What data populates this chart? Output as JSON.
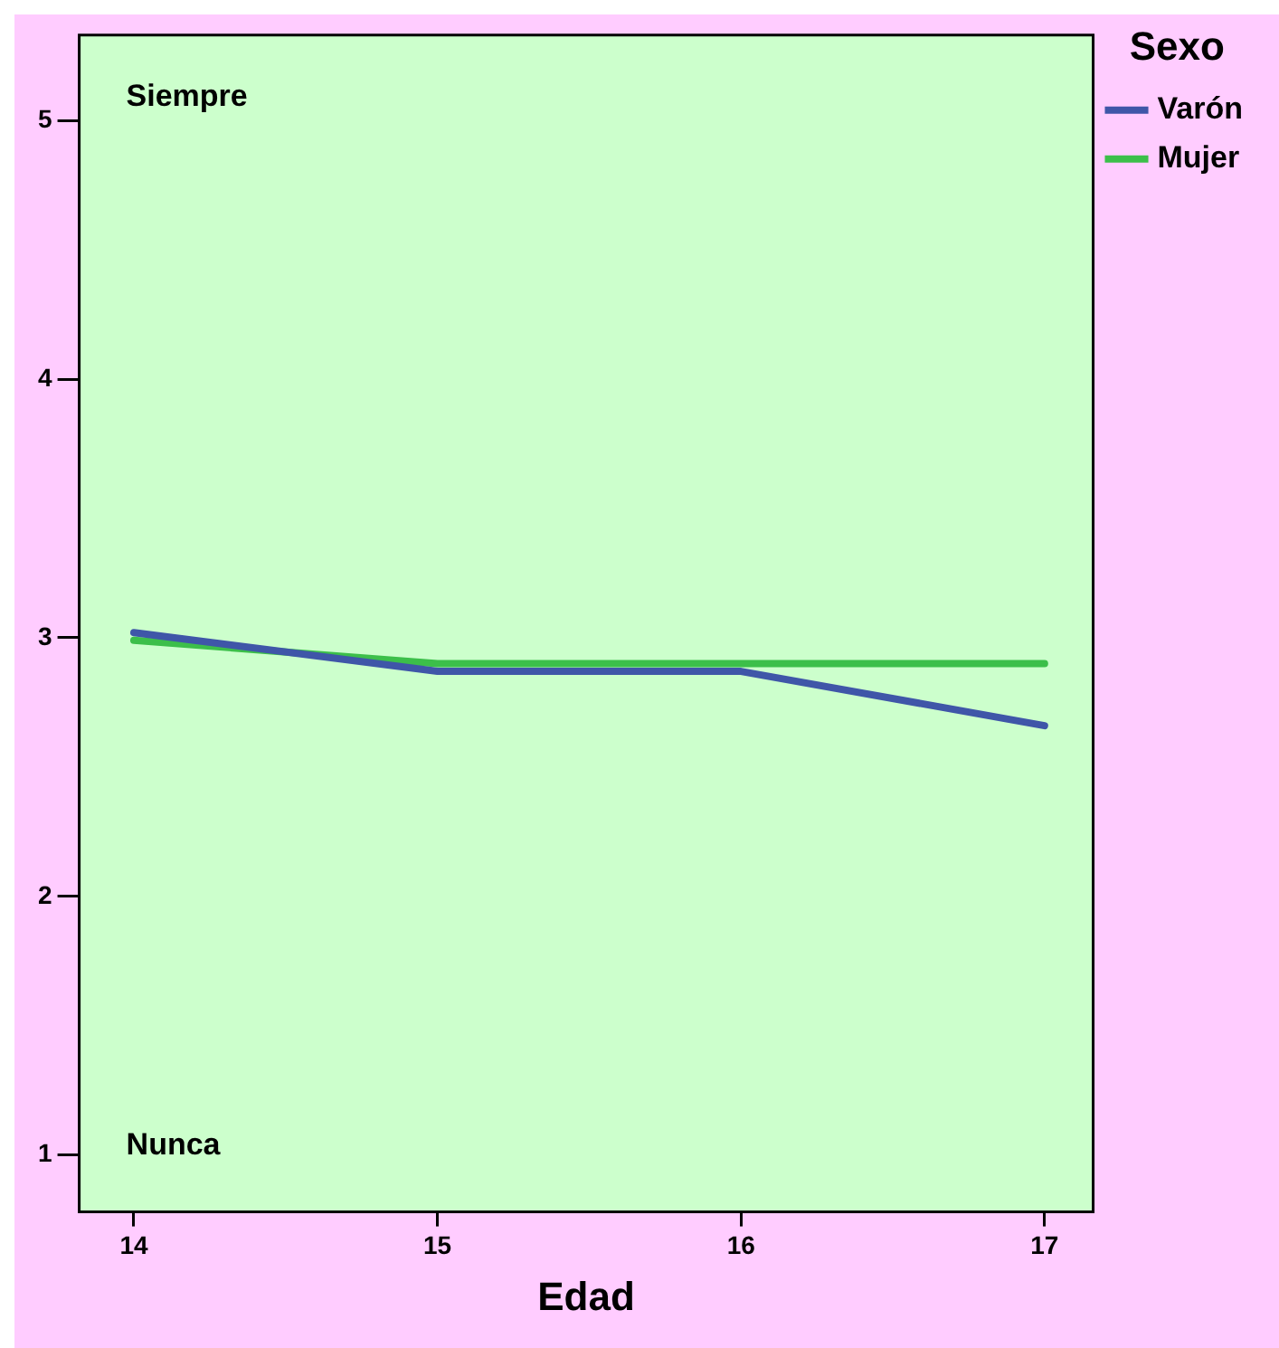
{
  "chart_data": {
    "type": "line",
    "xlabel": "Edad",
    "legend_title": "Sexo",
    "legend": "top right",
    "grid": false,
    "marker": "none",
    "line_style": "solid",
    "x": [
      14,
      15,
      16,
      17
    ],
    "xlim": [
      13.82,
      17.16
    ],
    "xticks": [
      14,
      15,
      16,
      17
    ],
    "ylim": [
      0.78,
      5.33
    ],
    "yticks": [
      1,
      2,
      3,
      4,
      5
    ],
    "series": [
      {
        "name": "Varón",
        "color": "#3f56a8",
        "values": [
          3.02,
          2.87,
          2.87,
          2.66
        ]
      },
      {
        "name": "Mujer",
        "color": "#3cbf4a",
        "values": [
          2.99,
          2.9,
          2.9,
          2.9
        ]
      }
    ],
    "annotations": [
      "Siempre",
      "Nunca"
    ]
  }
}
